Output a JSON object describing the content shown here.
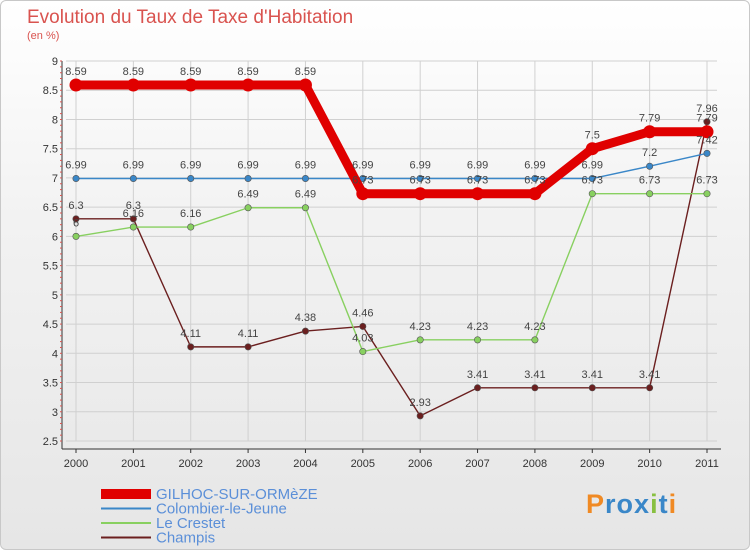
{
  "title": "Evolution du Taux de Taxe d'Habitation",
  "subtitle": "(en %)",
  "logo_text": "Proxiti",
  "colors": {
    "title": "#d9534f",
    "grid": "#d0d0d0",
    "axis": "#333333",
    "minor_tick": "#d9534f"
  },
  "chart_data": {
    "type": "line",
    "title": "Evolution du Taux de Taxe d'Habitation",
    "ylabel": "(en %)",
    "xlabel": "",
    "categories": [
      "2000",
      "2001",
      "2002",
      "2003",
      "2004",
      "2005",
      "2006",
      "2007",
      "2008",
      "2009",
      "2010",
      "2011"
    ],
    "ylim": [
      2.5,
      9
    ],
    "yticks": [
      "2.5",
      "3",
      "3.5",
      "4",
      "4.5",
      "5",
      "5.5",
      "6",
      "6.5",
      "7",
      "7.5",
      "8",
      "8.5",
      "9"
    ],
    "grid": true,
    "legend_position": "bottom-left",
    "series": [
      {
        "name": "GILHOC-SUR-ORMèZE",
        "color": "#e00000",
        "values": [
          8.59,
          8.59,
          8.59,
          8.59,
          8.59,
          6.73,
          6.73,
          6.73,
          6.73,
          7.5,
          7.79,
          7.79
        ],
        "labels": [
          "8.59",
          "8.59",
          "8.59",
          "8.59",
          "8.59",
          "6.73",
          "6.73",
          "6.73",
          "6.73",
          "7.5",
          "7.79",
          "7.79"
        ]
      },
      {
        "name": "Colombier-le-Jeune",
        "color": "#3a87c8",
        "values": [
          6.99,
          6.99,
          6.99,
          6.99,
          6.99,
          6.99,
          6.99,
          6.99,
          6.99,
          6.99,
          7.2,
          7.42
        ],
        "labels": [
          "6.99",
          "6.99",
          "6.99",
          "6.99",
          "6.99",
          "6.99",
          "6.99",
          "6.99",
          "6.99",
          "6.99",
          "7.2",
          "7.42"
        ]
      },
      {
        "name": "Le Crestet",
        "color": "#88d060",
        "values": [
          6,
          6.16,
          6.16,
          6.49,
          6.49,
          4.03,
          4.23,
          4.23,
          4.23,
          6.73,
          6.73,
          6.73
        ],
        "labels": [
          "6",
          "6.16",
          "6.16",
          "6.49",
          "6.49",
          "4.03",
          "4.23",
          "4.23",
          "4.23",
          "6.73",
          "6.73",
          "6.73"
        ]
      },
      {
        "name": "Champis",
        "color": "#6b1f1f",
        "values": [
          6.3,
          6.3,
          4.11,
          4.11,
          4.38,
          4.46,
          2.93,
          3.41,
          3.41,
          3.41,
          3.41,
          7.96
        ],
        "labels": [
          "6.3",
          "6.3",
          "4.11",
          "4.11",
          "4.38",
          "4.46",
          "2.93",
          "3.41",
          "3.41",
          "3.41",
          "3.41",
          "7.96"
        ]
      }
    ]
  }
}
